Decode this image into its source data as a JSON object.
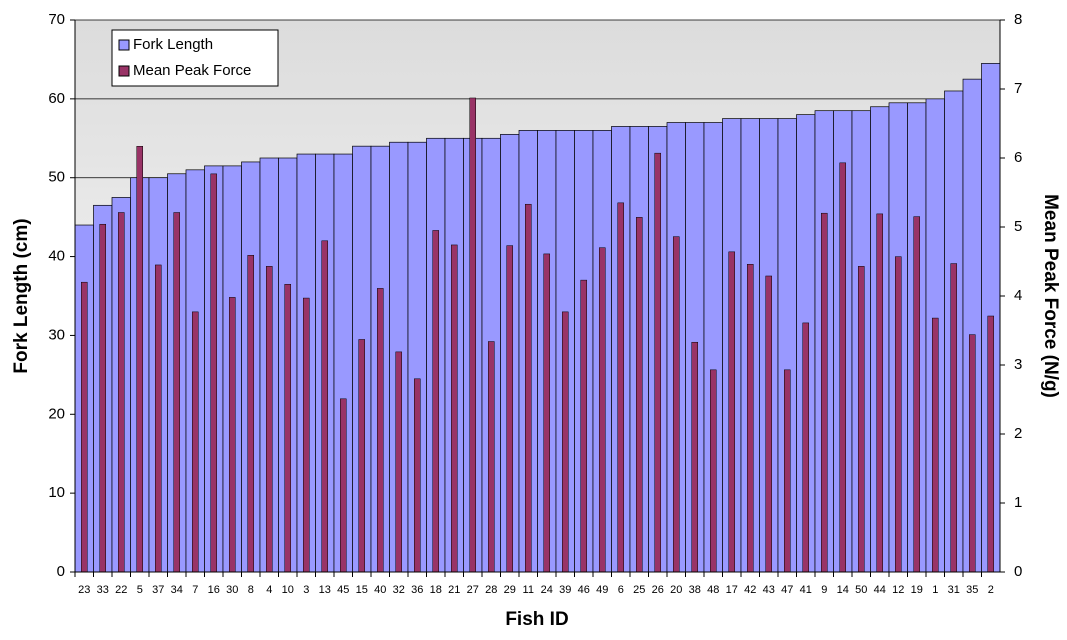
{
  "chart_data": {
    "type": "bar",
    "xlabel": "Fish ID",
    "ylabel": "Fork Length (cm)",
    "y2label": "Mean Peak Force (N/g)",
    "categories": [
      "23",
      "33",
      "22",
      "5",
      "37",
      "34",
      "7",
      "16",
      "30",
      "8",
      "4",
      "10",
      "3",
      "13",
      "45",
      "15",
      "40",
      "32",
      "36",
      "18",
      "21",
      "27",
      "28",
      "29",
      "11",
      "24",
      "39",
      "46",
      "49",
      "6",
      "25",
      "26",
      "20",
      "38",
      "48",
      "17",
      "42",
      "43",
      "47",
      "41",
      "9",
      "14",
      "50",
      "44",
      "12",
      "19",
      "1",
      "31",
      "35",
      "2"
    ],
    "series": [
      {
        "name": "Fork Length",
        "color": "#9999ff",
        "values": [
          44,
          46.5,
          47.5,
          50,
          50,
          50.5,
          51,
          51.5,
          51.5,
          52,
          52.5,
          52.5,
          53,
          53,
          53,
          54,
          54,
          54.5,
          54.5,
          55,
          55,
          55,
          55,
          55.5,
          56,
          56,
          56,
          56,
          56,
          56.5,
          56.5,
          56.5,
          57,
          57,
          57,
          57.5,
          57.5,
          57.5,
          57.5,
          58,
          58.5,
          58.5,
          58.5,
          59,
          59.5,
          59.5,
          60,
          61,
          62.5,
          64.5
        ]
      },
      {
        "name": "Mean Peak Force",
        "color": "#993366",
        "axis": "y2",
        "values": [
          4.2,
          5.04,
          5.21,
          6.17,
          4.45,
          5.21,
          3.77,
          5.77,
          3.98,
          4.59,
          4.43,
          4.17,
          3.97,
          4.8,
          2.51,
          3.37,
          4.11,
          3.19,
          2.8,
          4.95,
          4.74,
          6.87,
          3.34,
          4.73,
          5.33,
          4.61,
          3.77,
          4.23,
          4.7,
          5.35,
          5.14,
          6.07,
          4.86,
          3.33,
          2.93,
          4.64,
          4.46,
          4.29,
          2.93,
          3.61,
          5.2,
          5.93,
          4.43,
          5.19,
          4.57,
          5.15,
          3.68,
          4.47,
          3.44,
          3.71
        ]
      }
    ],
    "ylim": [
      0,
      70
    ],
    "yticks": [
      0,
      10,
      20,
      30,
      40,
      50,
      60,
      70
    ],
    "y2lim": [
      0,
      8
    ],
    "y2ticks": [
      0,
      1,
      2,
      3,
      4,
      5,
      6,
      7,
      8
    ],
    "grid": true,
    "legend": "upper left"
  }
}
